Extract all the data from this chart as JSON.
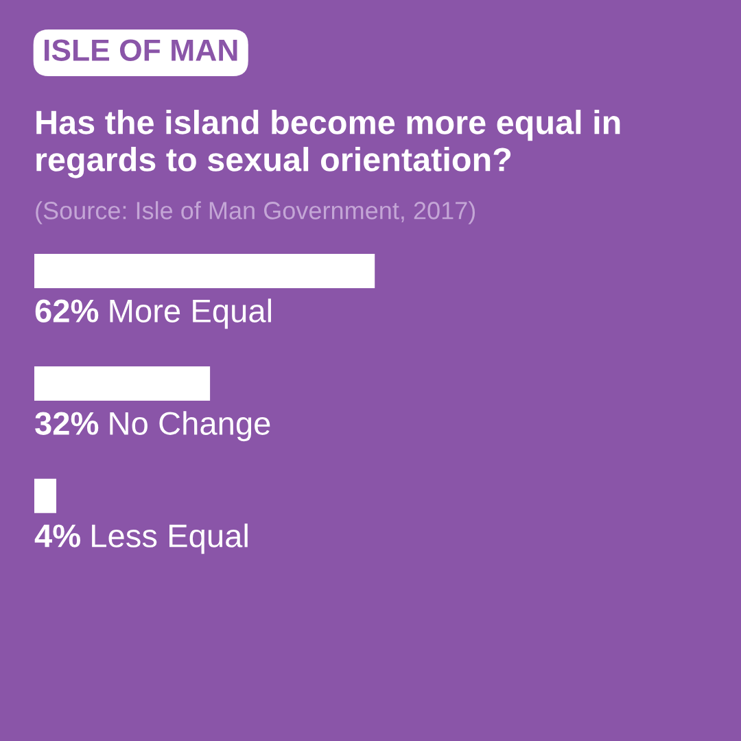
{
  "chart_data": {
    "type": "bar",
    "orientation": "horizontal",
    "subtitle": "ISLE OF MAN",
    "title": "Has the island become more equal in regards to sexual orientation?",
    "annotations": [
      "(Source: Isle of Man Government, 2017)"
    ],
    "categories": [
      "More Equal",
      "No Change",
      "Less Equal"
    ],
    "values": [
      62,
      32,
      4
    ],
    "value_labels": [
      "62%",
      "32%",
      "4%"
    ],
    "color": "#ffffff",
    "tick_labels": false
  }
}
